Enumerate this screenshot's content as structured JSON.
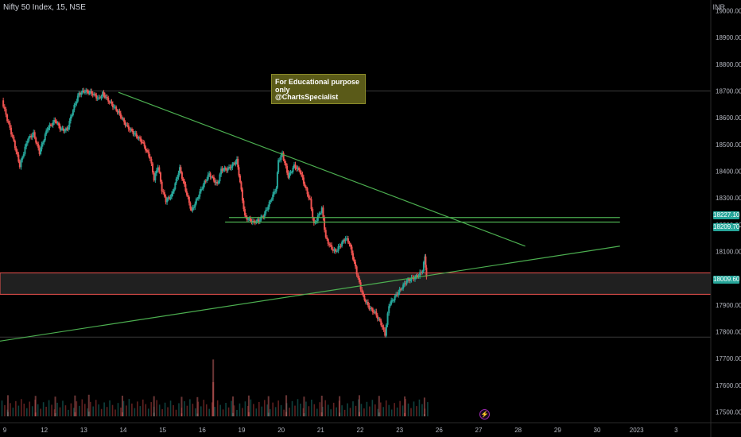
{
  "header": {
    "symbol": "Nifty 50 Index, 15, NSE",
    "currency": "INR"
  },
  "annotation": {
    "line1": "For Educational purpose only",
    "line2": "@ChartsSpecialist"
  },
  "price_tags": [
    {
      "value": "18227.10",
      "color": "#26a69a"
    },
    {
      "value": "18209.70",
      "color": "#26a69a"
    },
    {
      "value": "18009.60",
      "color": "#26a69a"
    }
  ],
  "lightning_icon": "lightning-icon",
  "colors": {
    "up": "#26a69a",
    "down": "#ef5350",
    "trendline": "#4caf50",
    "zone_border": "#ef5350",
    "zone_fill": "#3a3a3a",
    "background": "#000000"
  },
  "chart_data": {
    "type": "candlestick",
    "yticks": [
      "19000.00",
      "18900.00",
      "18800.00",
      "18700.00",
      "18600.00",
      "18500.00",
      "18400.00",
      "18300.00",
      "18200.00",
      "18100.00",
      "17900.00",
      "17800.00",
      "17700.00",
      "17600.00",
      "17500.00"
    ],
    "xticks": [
      "9",
      "12",
      "13",
      "14",
      "15",
      "16",
      "19",
      "20",
      "21",
      "22",
      "23",
      "26",
      "27",
      "28",
      "29",
      "30",
      "2023",
      "3"
    ],
    "ylim": [
      17460,
      19040
    ],
    "xlim": [
      0,
      18
    ],
    "anchors": [
      [
        0.05,
        18665
      ],
      [
        0.15,
        18610
      ],
      [
        0.25,
        18560
      ],
      [
        0.35,
        18510
      ],
      [
        0.5,
        18420
      ],
      [
        0.6,
        18470
      ],
      [
        0.7,
        18520
      ],
      [
        0.85,
        18540
      ],
      [
        1.0,
        18470
      ],
      [
        1.2,
        18560
      ],
      [
        1.4,
        18590
      ],
      [
        1.55,
        18555
      ],
      [
        1.7,
        18555
      ],
      [
        1.85,
        18630
      ],
      [
        2.0,
        18690
      ],
      [
        2.15,
        18700
      ],
      [
        2.35,
        18690
      ],
      [
        2.5,
        18670
      ],
      [
        2.6,
        18690
      ],
      [
        2.8,
        18655
      ],
      [
        3.0,
        18620
      ],
      [
        3.2,
        18570
      ],
      [
        3.4,
        18540
      ],
      [
        3.6,
        18510
      ],
      [
        3.8,
        18450
      ],
      [
        3.9,
        18370
      ],
      [
        4.0,
        18420
      ],
      [
        4.1,
        18330
      ],
      [
        4.2,
        18290
      ],
      [
        4.35,
        18310
      ],
      [
        4.55,
        18410
      ],
      [
        4.7,
        18330
      ],
      [
        4.85,
        18250
      ],
      [
        5.0,
        18300
      ],
      [
        5.15,
        18350
      ],
      [
        5.3,
        18390
      ],
      [
        5.5,
        18350
      ],
      [
        5.6,
        18405
      ],
      [
        5.8,
        18410
      ],
      [
        6.0,
        18440
      ],
      [
        6.05,
        18390
      ],
      [
        6.2,
        18230
      ],
      [
        6.4,
        18210
      ],
      [
        6.55,
        18215
      ],
      [
        6.7,
        18240
      ],
      [
        6.85,
        18290
      ],
      [
        7.0,
        18340
      ],
      [
        7.05,
        18440
      ],
      [
        7.15,
        18465
      ],
      [
        7.3,
        18380
      ],
      [
        7.45,
        18420
      ],
      [
        7.6,
        18400
      ],
      [
        7.75,
        18330
      ],
      [
        7.85,
        18290
      ],
      [
        7.95,
        18200
      ],
      [
        8.05,
        18230
      ],
      [
        8.15,
        18260
      ],
      [
        8.25,
        18150
      ],
      [
        8.4,
        18110
      ],
      [
        8.5,
        18100
      ],
      [
        8.6,
        18120
      ],
      [
        8.75,
        18150
      ],
      [
        8.85,
        18130
      ],
      [
        9.0,
        18040
      ],
      [
        9.1,
        17980
      ],
      [
        9.2,
        17930
      ],
      [
        9.35,
        17890
      ],
      [
        9.5,
        17870
      ],
      [
        9.65,
        17830
      ],
      [
        9.75,
        17790
      ],
      [
        9.85,
        17900
      ],
      [
        10.0,
        17930
      ],
      [
        10.15,
        17960
      ],
      [
        10.3,
        17990
      ],
      [
        10.45,
        18000
      ],
      [
        10.6,
        18010
      ],
      [
        10.7,
        18030
      ],
      [
        10.76,
        18080
      ],
      [
        10.8,
        18010
      ]
    ],
    "volumes": [
      [
        0.2,
        55
      ],
      [
        0.9,
        48
      ],
      [
        1.4,
        40
      ],
      [
        1.9,
        52
      ],
      [
        2.25,
        60
      ],
      [
        3.1,
        50
      ],
      [
        3.9,
        45
      ],
      [
        4.6,
        38
      ],
      [
        5.0,
        35
      ],
      [
        5.4,
        430
      ],
      [
        5.9,
        42
      ],
      [
        6.3,
        52
      ],
      [
        6.8,
        45
      ],
      [
        7.25,
        55
      ],
      [
        7.7,
        40
      ],
      [
        8.15,
        50
      ],
      [
        8.6,
        45
      ],
      [
        9.1,
        55
      ],
      [
        9.6,
        48
      ],
      [
        10.25,
        42
      ],
      [
        10.75,
        30
      ]
    ],
    "trendlines": [
      [
        [
          3.0,
          18695
        ],
        [
          13.3,
          18120
        ]
      ],
      [
        [
          0.0,
          17765
        ],
        [
          15.7,
          18120
        ]
      ]
    ],
    "hlines": [
      [
        [
          5.8,
          18227
        ],
        [
          15.7,
          18227
        ]
      ],
      [
        [
          5.7,
          18210
        ],
        [
          15.7,
          18210
        ]
      ]
    ],
    "zone": {
      "top": 18020,
      "bottom": 17940
    },
    "ref_lines": [
      18700,
      17780
    ]
  }
}
